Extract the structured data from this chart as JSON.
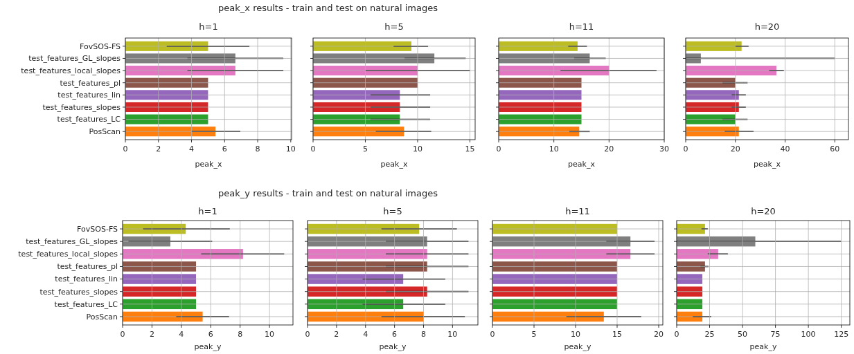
{
  "chart_data": [
    {
      "type": "bar",
      "orientation": "horizontal",
      "title": "h=1",
      "xlabel": "peak_x",
      "annotations": [
        "peak_x results - train and test on natural images"
      ],
      "categories": [
        "FovSOS-FS",
        "test_features_GL_slopes",
        "test_features_local_slopes",
        "test_features_pl",
        "test_features_lin",
        "test_features_slopes",
        "test_features_LC",
        "PosScan"
      ],
      "values": [
        5.0,
        6.65,
        6.65,
        5.0,
        5.0,
        5.0,
        5.0,
        5.45
      ],
      "colors": [
        "#bcbd22",
        "#7f7f7f",
        "#e377c2",
        "#8c564b",
        "#9467bd",
        "#d62728",
        "#2ca02c",
        "#ff7f0e"
      ],
      "errors": [
        [
          2.5,
          7.5
        ],
        [
          3.75,
          9.55
        ],
        [
          3.75,
          9.55
        ],
        null,
        null,
        null,
        null,
        [
          4.0,
          6.95
        ]
      ],
      "xlim": [
        0,
        10.05
      ],
      "xticks": [
        0,
        2,
        4,
        6,
        8,
        10
      ],
      "grid": true
    },
    {
      "type": "bar",
      "orientation": "horizontal",
      "title": "h=5",
      "xlabel": "peak_x",
      "categories": [
        null,
        null,
        null,
        null,
        null,
        null,
        null,
        null
      ],
      "values": [
        9.4,
        11.6,
        10.0,
        10.0,
        8.3,
        8.3,
        8.3,
        8.7
      ],
      "colors": [
        "#bcbd22",
        "#7f7f7f",
        "#e377c2",
        "#8c564b",
        "#9467bd",
        "#d62728",
        "#2ca02c",
        "#ff7f0e"
      ],
      "errors": [
        [
          7.7,
          11.0
        ],
        [
          8.75,
          14.6
        ],
        [
          5.0,
          15.0
        ],
        null,
        [
          5.5,
          11.2
        ],
        [
          5.5,
          11.2
        ],
        [
          5.5,
          11.2
        ],
        [
          6.0,
          11.3
        ]
      ],
      "xlim": [
        0,
        15.5
      ],
      "xticks": [
        0,
        5,
        10,
        15
      ],
      "grid": true,
      "tick_labels": "x"
    },
    {
      "type": "bar",
      "orientation": "horizontal",
      "title": "h=11",
      "xlabel": "peak_x",
      "categories": [
        null,
        null,
        null,
        null,
        null,
        null,
        null,
        null
      ],
      "values": [
        14.3,
        16.5,
        20.0,
        15.0,
        15.0,
        15.0,
        15.0,
        14.6
      ],
      "colors": [
        "#bcbd22",
        "#7f7f7f",
        "#e377c2",
        "#8c564b",
        "#9467bd",
        "#d62728",
        "#2ca02c",
        "#ff7f0e"
      ],
      "errors": [
        [
          12.6,
          16.0
        ],
        [
          13.7,
          19.4
        ],
        [
          11.2,
          28.6
        ],
        null,
        null,
        null,
        null,
        [
          12.8,
          16.5
        ]
      ],
      "xlim": [
        0,
        30
      ],
      "xticks": [
        0,
        10,
        20,
        30
      ],
      "grid": true,
      "tick_labels": "x"
    },
    {
      "type": "bar",
      "orientation": "horizontal",
      "title": "h=20",
      "xlabel": "peak_x",
      "categories": [
        null,
        null,
        null,
        null,
        null,
        null,
        null,
        null
      ],
      "values": [
        22.5,
        6.1,
        36.5,
        20.0,
        21.4,
        21.4,
        20.0,
        21.4
      ],
      "colors": [
        "#bcbd22",
        "#7f7f7f",
        "#e377c2",
        "#8c564b",
        "#9467bd",
        "#d62728",
        "#2ca02c",
        "#ff7f0e"
      ],
      "errors": [
        [
          19.9,
          25.3
        ],
        [
          0,
          60
        ],
        [
          33.6,
          39.5
        ],
        [
          14.8,
          24.9
        ],
        [
          18.5,
          24.2
        ],
        [
          18.5,
          24.2
        ],
        [
          14.8,
          24.9
        ],
        [
          15.7,
          27.3
        ]
      ],
      "xlim": [
        0,
        65.5
      ],
      "xticks": [
        0,
        20,
        40,
        60
      ],
      "grid": true,
      "tick_labels": "x"
    },
    {
      "type": "bar",
      "orientation": "horizontal",
      "title": "h=1",
      "xlabel": "peak_y",
      "annotations": [
        "peak_y results - train and test on natural images"
      ],
      "categories": [
        "FovSOS-FS",
        "test_features_GL_slopes",
        "test_features_local_slopes",
        "test_features_pl",
        "test_features_lin",
        "test_features_slopes",
        "test_features_LC",
        "PosScan"
      ],
      "values": [
        4.3,
        3.25,
        8.2,
        5.0,
        5.0,
        5.0,
        5.0,
        5.45
      ],
      "colors": [
        "#bcbd22",
        "#7f7f7f",
        "#e377c2",
        "#8c564b",
        "#9467bd",
        "#d62728",
        "#2ca02c",
        "#ff7f0e"
      ],
      "errors": [
        [
          1.4,
          7.3
        ],
        [
          0.4,
          6.1
        ],
        [
          5.35,
          11.0
        ],
        null,
        null,
        null,
        null,
        [
          3.65,
          7.25
        ]
      ],
      "xlim": [
        0,
        11.6
      ],
      "xticks": [
        0,
        2,
        4,
        6,
        8,
        10
      ],
      "grid": true
    },
    {
      "type": "bar",
      "orientation": "horizontal",
      "title": "h=5",
      "xlabel": "peak_y",
      "categories": [
        null,
        null,
        null,
        null,
        null,
        null,
        null,
        null
      ],
      "values": [
        7.7,
        8.25,
        8.25,
        8.25,
        6.6,
        8.25,
        6.6,
        8.0
      ],
      "colors": [
        "#bcbd22",
        "#7f7f7f",
        "#e377c2",
        "#8c564b",
        "#9467bd",
        "#d62728",
        "#2ca02c",
        "#ff7f0e"
      ],
      "errors": [
        [
          5.1,
          10.3
        ],
        [
          5.4,
          11.1
        ],
        [
          5.4,
          11.1
        ],
        [
          5.4,
          11.1
        ],
        [
          3.8,
          9.5
        ],
        [
          5.4,
          11.1
        ],
        [
          3.8,
          9.5
        ],
        [
          5.1,
          10.85
        ]
      ],
      "xlim": [
        0,
        11.75
      ],
      "xticks": [
        0,
        2,
        4,
        6,
        8,
        10
      ],
      "grid": true,
      "tick_labels": "x"
    },
    {
      "type": "bar",
      "orientation": "horizontal",
      "title": "h=11",
      "xlabel": "peak_y",
      "categories": [
        null,
        null,
        null,
        null,
        null,
        null,
        null,
        null
      ],
      "values": [
        15.0,
        16.6,
        16.6,
        15.0,
        15.0,
        15.0,
        15.0,
        13.4
      ],
      "colors": [
        "#bcbd22",
        "#7f7f7f",
        "#e377c2",
        "#8c564b",
        "#9467bd",
        "#d62728",
        "#2ca02c",
        "#ff7f0e"
      ],
      "errors": [
        null,
        [
          13.7,
          19.5
        ],
        [
          13.7,
          19.5
        ],
        null,
        null,
        null,
        null,
        [
          8.9,
          17.9
        ]
      ],
      "xlim": [
        0,
        20.5
      ],
      "xticks": [
        0,
        5,
        10,
        15,
        20
      ],
      "grid": true,
      "tick_labels": "x"
    },
    {
      "type": "bar",
      "orientation": "horizontal",
      "title": "h=20",
      "xlabel": "peak_y",
      "categories": [
        null,
        null,
        null,
        null,
        null,
        null,
        null,
        null
      ],
      "values": [
        21.5,
        59.7,
        31.5,
        21.5,
        19.5,
        19.5,
        19.5,
        19.5
      ],
      "colors": [
        "#bcbd22",
        "#7f7f7f",
        "#e377c2",
        "#8c564b",
        "#9467bd",
        "#d62728",
        "#2ca02c",
        "#ff7f0e"
      ],
      "errors": [
        [
          18.8,
          23.6
        ],
        [
          0,
          125
        ],
        [
          23.6,
          38.9
        ],
        [
          18.0,
          24.1
        ],
        null,
        null,
        null,
        [
          12.2,
          26.2
        ]
      ],
      "xlim": [
        0,
        131.5
      ],
      "xticks": [
        0,
        25,
        50,
        75,
        100,
        125
      ],
      "grid": true,
      "tick_labels": "x"
    }
  ]
}
